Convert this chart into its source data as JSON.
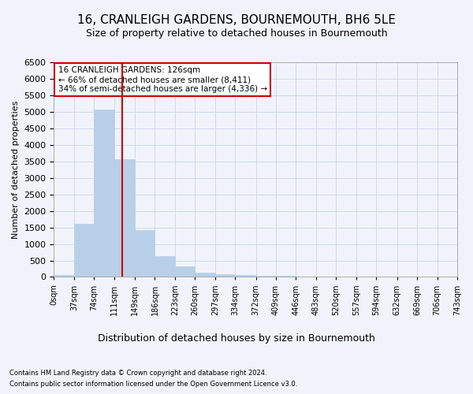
{
  "title": "16, CRANLEIGH GARDENS, BOURNEMOUTH, BH6 5LE",
  "subtitle": "Size of property relative to detached houses in Bournemouth",
  "xlabel": "Distribution of detached houses by size in Bournemouth",
  "ylabel": "Number of detached properties",
  "bar_color": "#b8cfe8",
  "bar_edgecolor": "#b8cfe8",
  "background_color": "#f0f4fa",
  "vline_x": 126,
  "vline_color": "#cc0000",
  "bin_edges": [
    0,
    37,
    74,
    111,
    149,
    186,
    223,
    260,
    297,
    334,
    372,
    409,
    446,
    483,
    520,
    557,
    594,
    632,
    669,
    706,
    743
  ],
  "bin_labels": [
    "0sqm",
    "37sqm",
    "74sqm",
    "111sqm",
    "149sqm",
    "186sqm",
    "223sqm",
    "260sqm",
    "297sqm",
    "334sqm",
    "372sqm",
    "409sqm",
    "446sqm",
    "483sqm",
    "520sqm",
    "557sqm",
    "594sqm",
    "632sqm",
    "669sqm",
    "706sqm",
    "743sqm"
  ],
  "bar_heights": [
    65,
    1620,
    5060,
    3570,
    1410,
    620,
    310,
    140,
    85,
    50,
    35,
    25,
    15,
    10,
    5,
    0,
    0,
    0,
    0,
    0
  ],
  "ylim": [
    0,
    6500
  ],
  "yticks": [
    0,
    500,
    1000,
    1500,
    2000,
    2500,
    3000,
    3500,
    4000,
    4500,
    5000,
    5500,
    6000,
    6500
  ],
  "annotation_text": "16 CRANLEIGH GARDENS: 126sqm\n← 66% of detached houses are smaller (8,411)\n34% of semi-detached houses are larger (4,336) →",
  "annotation_box_edgecolor": "#cc0000",
  "footer_line1": "Contains HM Land Registry data © Crown copyright and database right 2024.",
  "footer_line2": "Contains public sector information licensed under the Open Government Licence v3.0.",
  "grid_color": "#d0d8e8",
  "title_fontsize": 11,
  "subtitle_fontsize": 9,
  "xlabel_fontsize": 9,
  "ylabel_fontsize": 8,
  "footer_fontsize": 6,
  "annot_fontsize": 7.5
}
